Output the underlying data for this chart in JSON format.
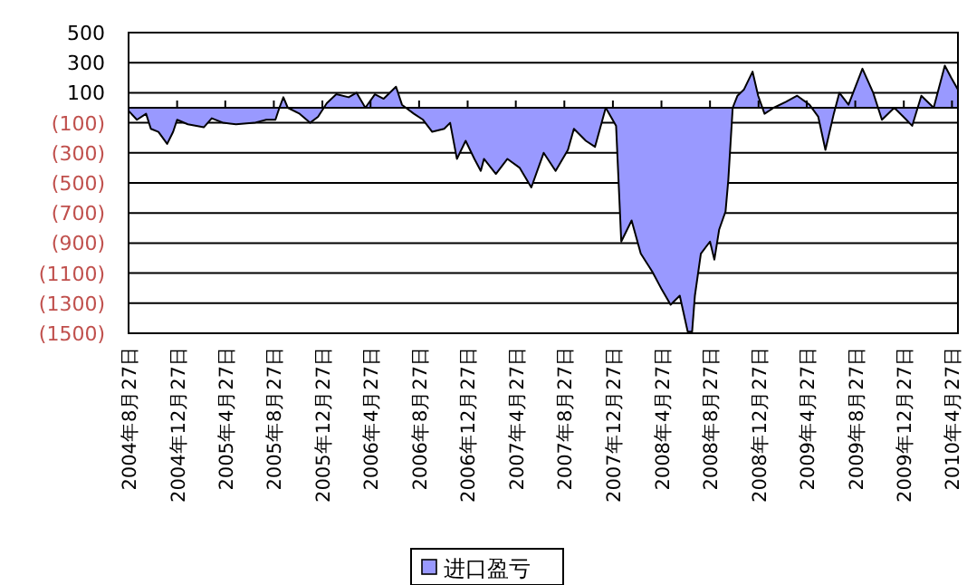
{
  "chart_data": {
    "type": "area",
    "legend": "bottom",
    "grid": "y",
    "x": [
      "2004-08-27",
      "2004-09-17",
      "2004-10-10",
      "2004-10-22",
      "2004-11-10",
      "2004-12-02",
      "2004-12-17",
      "2004-12-27",
      "2005-01-23",
      "2005-03-04",
      "2005-03-24",
      "2005-04-22",
      "2005-05-24",
      "2005-07-09",
      "2005-08-08",
      "2005-08-31",
      "2005-09-10",
      "2005-09-20",
      "2005-10-01",
      "2005-10-31",
      "2005-11-26",
      "2005-12-16",
      "2006-01-07",
      "2006-01-31",
      "2006-03-03",
      "2006-03-23",
      "2006-04-14",
      "2006-05-08",
      "2006-05-30",
      "2006-06-30",
      "2006-07-15",
      "2006-08-14",
      "2006-09-06",
      "2006-09-29",
      "2006-10-29",
      "2006-11-13",
      "2006-11-30",
      "2006-12-22",
      "2007-01-13",
      "2007-01-29",
      "2007-02-06",
      "2007-03-08",
      "2007-04-06",
      "2007-05-07",
      "2007-06-05",
      "2007-07-06",
      "2007-08-05",
      "2007-09-05",
      "2007-09-20",
      "2007-10-20",
      "2007-11-12",
      "2007-12-09",
      "2008-01-04",
      "2008-01-17",
      "2008-02-12",
      "2008-03-06",
      "2008-04-04",
      "2008-04-28",
      "2008-05-20",
      "2008-06-12",
      "2008-07-02",
      "2008-07-13",
      "2008-07-20",
      "2008-08-04",
      "2008-08-27",
      "2008-09-07",
      "2008-09-19",
      "2008-10-05",
      "2008-10-12",
      "2008-10-23",
      "2008-11-04",
      "2008-11-20",
      "2008-12-12",
      "2008-12-26",
      "2009-01-11",
      "2009-02-03",
      "2009-03-06",
      "2009-04-03",
      "2009-05-04",
      "2009-05-26",
      "2009-06-13",
      "2009-07-04",
      "2009-07-18",
      "2009-08-10",
      "2009-09-14",
      "2009-10-11",
      "2009-11-02",
      "2009-12-03",
      "2009-12-26",
      "2010-01-17",
      "2010-02-09",
      "2010-03-12",
      "2010-04-09",
      "2010-04-25",
      "2010-05-12"
    ],
    "series": [
      {
        "name": "进口盈亏",
        "color": "#9999ff",
        "values": [
          -20,
          -80,
          -40,
          -140,
          -160,
          -240,
          -160,
          -80,
          -110,
          -130,
          -70,
          -100,
          -110,
          -100,
          -80,
          -80,
          0,
          70,
          0,
          -40,
          -100,
          -60,
          30,
          90,
          70,
          100,
          0,
          90,
          60,
          140,
          20,
          -40,
          -80,
          -160,
          -140,
          -100,
          -340,
          -220,
          -340,
          -420,
          -340,
          -440,
          -340,
          -400,
          -530,
          -300,
          -420,
          -280,
          -140,
          -220,
          -260,
          0,
          -120,
          -890,
          -750,
          -970,
          -1090,
          -1210,
          -1310,
          -1250,
          -1490,
          -1490,
          -1250,
          -970,
          -890,
          -1010,
          -810,
          -690,
          -480,
          0,
          80,
          120,
          240,
          80,
          -40,
          0,
          40,
          80,
          20,
          -60,
          -280,
          -40,
          100,
          20,
          260,
          100,
          -80,
          0,
          -60,
          -120,
          80,
          0,
          280,
          200,
          120
        ]
      }
    ],
    "xlim": [
      "2004-08-27",
      "2010-05-12"
    ],
    "ylim": [
      -1500,
      500
    ],
    "yticks": [
      500,
      300,
      100,
      {
        "value": -100,
        "label": "(100)"
      },
      {
        "value": -300,
        "label": "(300)"
      },
      {
        "value": -500,
        "label": "(500)"
      },
      {
        "value": -700,
        "label": "(700)"
      },
      {
        "value": -900,
        "label": "(900)"
      },
      {
        "value": -1100,
        "label": "(1100)"
      },
      {
        "value": -1300,
        "label": "(1300)"
      },
      {
        "value": -1500,
        "label": "(1500)"
      }
    ],
    "xticks": [
      {
        "value": "2004-08-27",
        "label": "2004年8月27日"
      },
      {
        "value": "2004-12-27",
        "label": "2004年12月27日"
      },
      {
        "value": "2005-04-27",
        "label": "2005年4月27日"
      },
      {
        "value": "2005-08-27",
        "label": "2005年8月27日"
      },
      {
        "value": "2005-12-27",
        "label": "2005年12月27日"
      },
      {
        "value": "2006-04-27",
        "label": "2006年4月27日"
      },
      {
        "value": "2006-08-27",
        "label": "2006年8月27日"
      },
      {
        "value": "2006-12-27",
        "label": "2006年12月27日"
      },
      {
        "value": "2007-04-27",
        "label": "2007年4月27日"
      },
      {
        "value": "2007-08-27",
        "label": "2007年8月27日"
      },
      {
        "value": "2007-12-27",
        "label": "2007年12月27日"
      },
      {
        "value": "2008-04-27",
        "label": "2008年4月27日"
      },
      {
        "value": "2008-08-27",
        "label": "2008年8月27日"
      },
      {
        "value": "2008-12-27",
        "label": "2008年12月27日"
      },
      {
        "value": "2009-04-27",
        "label": "2009年4月27日"
      },
      {
        "value": "2009-08-27",
        "label": "2009年8月27日"
      },
      {
        "value": "2009-12-27",
        "label": "2009年12月27日"
      },
      {
        "value": "2010-04-27",
        "label": "2010年4月27日"
      }
    ]
  }
}
